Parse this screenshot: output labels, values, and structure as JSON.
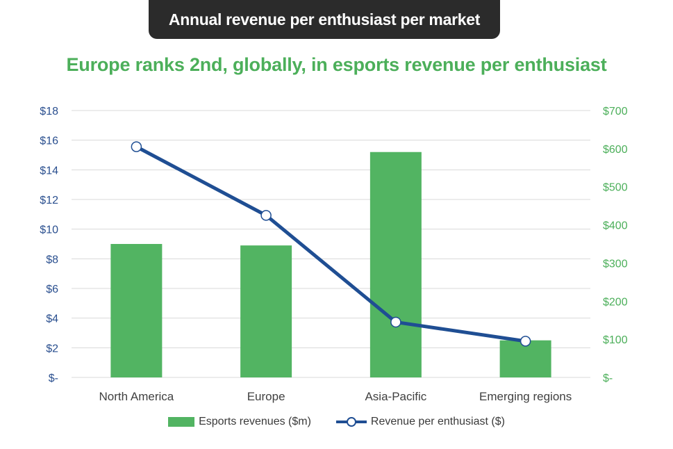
{
  "banner": {
    "title": "Annual revenue per enthusiast per market"
  },
  "colors": {
    "bar": "#52b462",
    "line": "#1f4e93",
    "left_axis_text": "#2a4f8f",
    "right_axis_text": "#4caf5a",
    "grid": "#d9d9d9",
    "category_text": "#404040"
  },
  "chart_data": {
    "type": "bar+line",
    "title": "Europe ranks 2nd, globally, in esports revenue per enthusiast",
    "categories": [
      "North America",
      "Europe",
      "Asia-Pacific",
      "Emerging regions"
    ],
    "series": [
      {
        "name": "Esports revenues ($m)",
        "type": "bar",
        "axis": "left",
        "values": [
          9.0,
          8.9,
          15.2,
          2.5
        ]
      },
      {
        "name": "Revenue per enthusiast ($)",
        "type": "line",
        "axis": "right",
        "values": [
          605,
          425,
          145,
          95
        ]
      }
    ],
    "left_axis": {
      "range": [
        0,
        18
      ],
      "ticks": [
        "$-",
        "$2",
        "$4",
        "$6",
        "$8",
        "$10",
        "$12",
        "$14",
        "$16",
        "$18"
      ]
    },
    "right_axis": {
      "range": [
        0,
        700
      ],
      "ticks": [
        "$-",
        "$100",
        "$200",
        "$300",
        "$400",
        "$500",
        "$600",
        "$700"
      ]
    },
    "grid": true,
    "legend_position": "bottom"
  }
}
